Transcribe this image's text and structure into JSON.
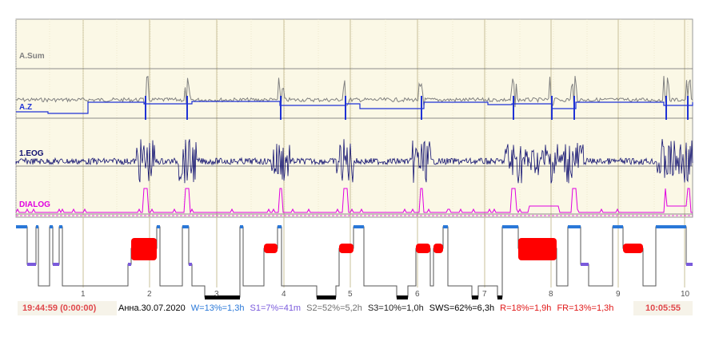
{
  "channels": [
    {
      "label": "A.Sum",
      "color": "#808080"
    },
    {
      "label": "A.Z",
      "color": "#1f32d6"
    },
    {
      "label": "1.EOG",
      "color": "#101070"
    },
    {
      "label": "DIALOG",
      "color": "#e000e0"
    }
  ],
  "hour_marks": [
    "1",
    "2",
    "3",
    "4",
    "5",
    "6",
    "7",
    "8",
    "9",
    "10"
  ],
  "status": {
    "start_time": "19:44:59 (0:00:00)",
    "end_time": "10:05:55",
    "summary": [
      {
        "text": "Анна.30.07.2020",
        "color": "#000000"
      },
      {
        "text": "W=13%=1,3h",
        "color": "#2a78d8"
      },
      {
        "text": "S1=7%=41m",
        "color": "#7a5adc"
      },
      {
        "text": "S2=52%=5,2h",
        "color": "#707070"
      },
      {
        "text": "S3=10%=1,0h",
        "color": "#202020"
      },
      {
        "text": "SWS=62%=6,3h",
        "color": "#000000"
      },
      {
        "text": "R=18%=1,9h",
        "color": "#e01818"
      },
      {
        "text": "FR=13%=1,3h",
        "color": "#e01818"
      }
    ]
  },
  "colors": {
    "background": "#fbf8e6",
    "grid": "#c8c09a",
    "wake": "#2a78d8",
    "s1": "#7a5adc",
    "rem": "#ff0000",
    "deep": "#000000",
    "hypno_line": "#555555"
  }
}
